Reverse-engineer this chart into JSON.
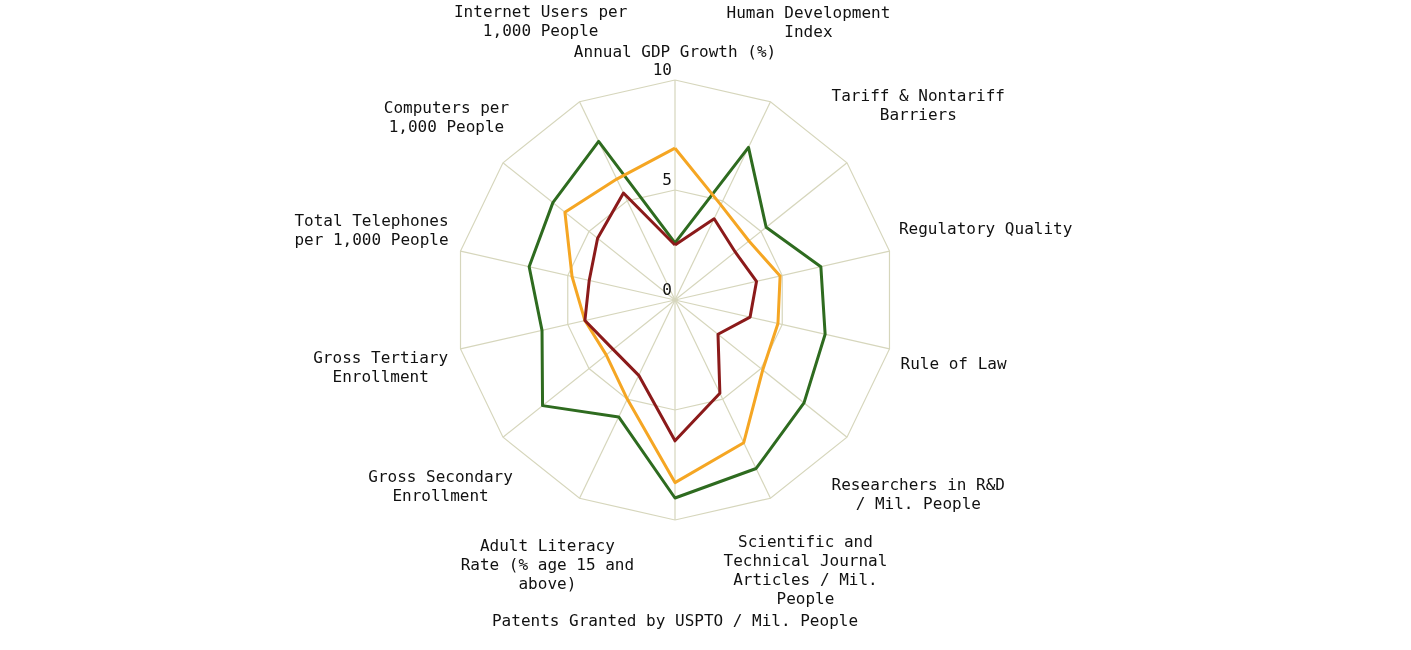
{
  "chart_data": {
    "type": "radar",
    "categories": [
      "Annual GDP Growth (%)",
      "Human Development Index",
      "Tariff & Nontariff Barriers",
      "Regulatory Quality",
      "Rule of Law",
      "Researchers in R&D / Mil. People",
      "Scientific and Technical Journal Articles / Mil. People",
      "Patents Granted by USPTO / Mil. People",
      "Adult Literacy Rate (% age 15 and above)",
      "Gross Secondary Enrollment",
      "Gross Tertiary Enrollment",
      "Total Telephones per 1,000 People",
      "Computers per 1,000 People",
      "Internet Users per 1,000 People"
    ],
    "series": [
      {
        "color": "#2e6b1f",
        "values": [
          2.6,
          7.7,
          5.3,
          6.8,
          7.0,
          7.5,
          8.5,
          9.0,
          5.9,
          7.7,
          6.2,
          6.8,
          7.1,
          8.0
        ]
      },
      {
        "color": "#f5a623",
        "values": [
          6.9,
          4.8,
          4.3,
          4.9,
          4.8,
          5.1,
          7.2,
          8.3,
          5.0,
          4.0,
          4.2,
          4.8,
          6.4,
          6.1
        ]
      },
      {
        "color": "#8b1a1a",
        "values": [
          2.5,
          4.1,
          3.5,
          3.8,
          3.5,
          2.5,
          4.7,
          6.4,
          3.8,
          3.6,
          4.2,
          4.0,
          4.5,
          5.4
        ]
      }
    ],
    "ylim": [
      0,
      10
    ],
    "yticks": [
      0,
      5,
      10
    ],
    "grid": true
  }
}
